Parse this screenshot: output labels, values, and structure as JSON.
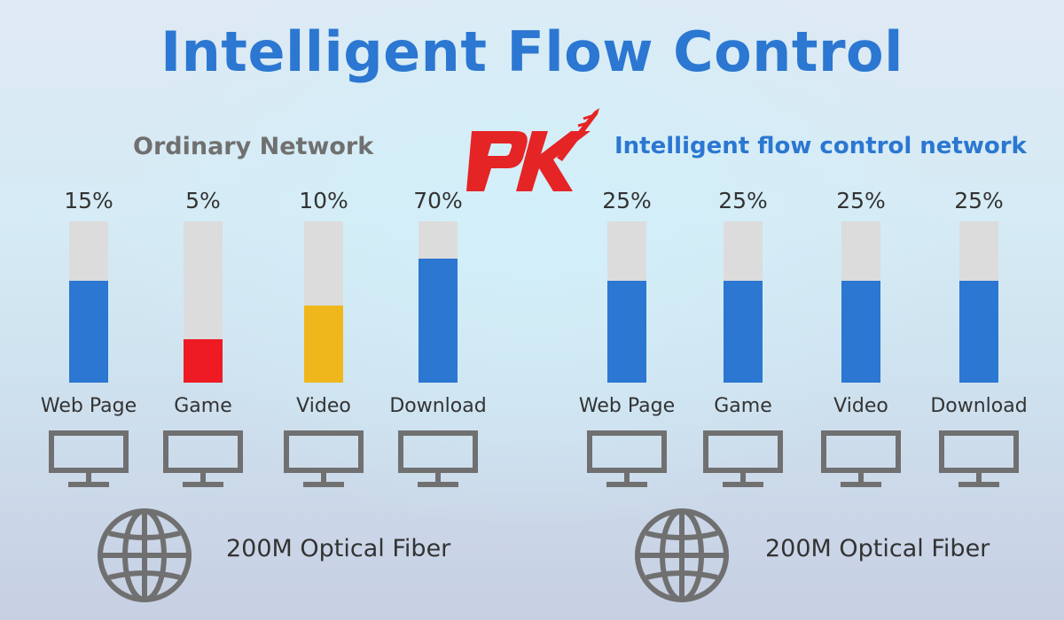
{
  "title": "Intelligent Flow Control",
  "colors": {
    "title": "#2b77d1",
    "track": "#dcdcdc",
    "blue": "#2b77d1",
    "red": "#ee1b24",
    "yellow": "#f0b71c",
    "grey_text": "#707070"
  },
  "chart_data": [
    {
      "type": "bar",
      "title": "Ordinary Network",
      "categories": [
        "Web Page",
        "Game",
        "Video",
        "Download"
      ],
      "values": [
        15,
        5,
        10,
        70
      ],
      "value_labels": [
        "15%",
        "5%",
        "10%",
        "70%"
      ],
      "bar_colors": [
        "#2b77d1",
        "#ee1b24",
        "#f0b71c",
        "#2b77d1"
      ],
      "fill_fractions": [
        0.63,
        0.27,
        0.48,
        0.77
      ],
      "ylim": [
        0,
        100
      ],
      "footer": "200M Optical Fiber"
    },
    {
      "type": "bar",
      "title": "Intelligent flow control network",
      "categories": [
        "Web Page",
        "Game",
        "Video",
        "Download"
      ],
      "values": [
        25,
        25,
        25,
        25
      ],
      "value_labels": [
        "25%",
        "25%",
        "25%",
        "25%"
      ],
      "bar_colors": [
        "#2b77d1",
        "#2b77d1",
        "#2b77d1",
        "#2b77d1"
      ],
      "fill_fractions": [
        0.63,
        0.63,
        0.63,
        0.63
      ],
      "ylim": [
        0,
        100
      ],
      "footer": "200M Optical Fiber"
    }
  ],
  "icons": {
    "monitor": "monitor-icon",
    "globe": "globe-icon",
    "logo": "pk-logo"
  }
}
